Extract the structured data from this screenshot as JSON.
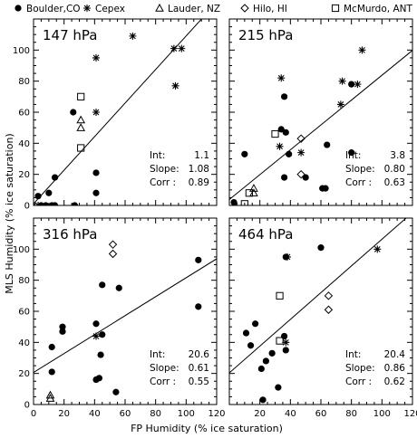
{
  "legend": [
    {
      "label": "Boulder,CO",
      "marker": "filled-circle"
    },
    {
      "label": "Cepex",
      "marker": "asterisk"
    },
    {
      "label": "Lauder, NZ",
      "marker": "triangle"
    },
    {
      "label": "Hilo, HI",
      "marker": "diamond"
    },
    {
      "label": "McMurdo, ANT",
      "marker": "square"
    }
  ],
  "xlabel": "FP Humidity (% ice saturation)",
  "ylabel": "MLS Humidity (% ice saturation)",
  "stat_labels": {
    "int": "Int:",
    "slope": "Slope:",
    "corr": "Corr :"
  },
  "chart_data": [
    {
      "type": "scatter",
      "title": "147 hPa",
      "xlim": [
        0,
        120
      ],
      "ylim": [
        0,
        120
      ],
      "xticks": [],
      "yticks": [
        0,
        20,
        40,
        60,
        80,
        100
      ],
      "stats": {
        "int": "1.1",
        "slope": "1.08",
        "corr": "0.89"
      },
      "fit": {
        "intercept": 1.1,
        "slope": 1.08
      },
      "series": [
        {
          "marker": "filled-circle",
          "points": [
            [
              3,
              6
            ],
            [
              5,
              0
            ],
            [
              8,
              0
            ],
            [
              10,
              8
            ],
            [
              12,
              0
            ],
            [
              14,
              0
            ],
            [
              14,
              18
            ],
            [
              26,
              60
            ],
            [
              27,
              0
            ],
            [
              41,
              21
            ],
            [
              41,
              8
            ]
          ]
        },
        {
          "marker": "asterisk",
          "points": [
            [
              0,
              0
            ],
            [
              3,
              0
            ],
            [
              41,
              95
            ],
            [
              41,
              60
            ],
            [
              65,
              109
            ],
            [
              92,
              101
            ],
            [
              97,
              101
            ],
            [
              93,
              77
            ]
          ]
        },
        {
          "marker": "triangle",
          "points": [
            [
              31,
              55
            ],
            [
              31,
              50
            ]
          ]
        },
        {
          "marker": "square",
          "points": [
            [
              31,
              70
            ],
            [
              31,
              37
            ]
          ]
        }
      ]
    },
    {
      "type": "scatter",
      "title": "215 hPa",
      "xlim": [
        0,
        120
      ],
      "ylim": [
        0,
        120
      ],
      "xticks": [],
      "yticks": [],
      "stats": {
        "int": "3.8",
        "slope": "0.80",
        "corr": "0.63"
      },
      "fit": {
        "intercept": 3.8,
        "slope": 0.8
      },
      "series": [
        {
          "marker": "filled-circle",
          "points": [
            [
              3,
              2
            ],
            [
              10,
              33
            ],
            [
              34,
              49
            ],
            [
              36,
              70
            ],
            [
              37,
              47
            ],
            [
              36,
              18
            ],
            [
              39,
              33
            ],
            [
              50,
              18
            ],
            [
              61,
              11
            ],
            [
              63,
              11
            ],
            [
              64,
              39
            ],
            [
              80,
              78
            ],
            [
              80,
              34
            ]
          ]
        },
        {
          "marker": "asterisk",
          "points": [
            [
              34,
              82
            ],
            [
              33,
              38
            ],
            [
              47,
              34
            ],
            [
              74,
              80
            ],
            [
              73,
              65
            ],
            [
              87,
              100
            ],
            [
              84,
              78
            ]
          ]
        },
        {
          "marker": "triangle",
          "points": [
            [
              16,
              11
            ],
            [
              16,
              8
            ]
          ]
        },
        {
          "marker": "diamond",
          "points": [
            [
              47,
              43
            ],
            [
              47,
              20
            ]
          ]
        },
        {
          "marker": "square",
          "points": [
            [
              10,
              1
            ],
            [
              30,
              46
            ],
            [
              13,
              8
            ]
          ]
        }
      ]
    },
    {
      "type": "scatter",
      "title": "316 hPa",
      "xlim": [
        0,
        120
      ],
      "ylim": [
        0,
        120
      ],
      "xticks": [
        0,
        20,
        40,
        60,
        80,
        100,
        120
      ],
      "yticks": [
        0,
        20,
        40,
        60,
        80,
        100
      ],
      "stats": {
        "int": "20.6",
        "slope": "0.61",
        "corr": "0.55"
      },
      "fit": {
        "intercept": 20.6,
        "slope": 0.61
      },
      "series": [
        {
          "marker": "filled-circle",
          "points": [
            [
              12,
              37
            ],
            [
              12,
              21
            ],
            [
              19,
              47
            ],
            [
              19,
              50
            ],
            [
              41,
              52
            ],
            [
              41,
              16
            ],
            [
              43,
              17
            ],
            [
              45,
              77
            ],
            [
              45,
              45
            ],
            [
              44,
              32
            ],
            [
              56,
              75
            ],
            [
              54,
              8
            ],
            [
              108,
              93
            ],
            [
              108,
              63
            ]
          ]
        },
        {
          "marker": "asterisk",
          "points": [
            [
              41,
              44
            ]
          ]
        },
        {
          "marker": "triangle",
          "points": [
            [
              11,
              6
            ],
            [
              11,
              4
            ]
          ]
        },
        {
          "marker": "diamond",
          "points": [
            [
              52,
              103
            ],
            [
              52,
              97
            ]
          ]
        }
      ]
    },
    {
      "type": "scatter",
      "title": "464 hPa",
      "xlim": [
        0,
        120
      ],
      "ylim": [
        0,
        120
      ],
      "xticks": [
        20,
        40,
        60,
        80,
        100,
        120
      ],
      "yticks": [],
      "stats": {
        "int": "20.4",
        "slope": "0.86",
        "corr": "0.62"
      },
      "fit": {
        "intercept": 20.4,
        "slope": 0.86
      },
      "series": [
        {
          "marker": "filled-circle",
          "points": [
            [
              11,
              46
            ],
            [
              14,
              38
            ],
            [
              17,
              52
            ],
            [
              21,
              23
            ],
            [
              22,
              3
            ],
            [
              24,
              28
            ],
            [
              28,
              33
            ],
            [
              32,
              11
            ],
            [
              36,
              44
            ],
            [
              37,
              35
            ],
            [
              60,
              101
            ],
            [
              37,
              95
            ]
          ]
        },
        {
          "marker": "asterisk",
          "points": [
            [
              38,
              95
            ],
            [
              37,
              40
            ],
            [
              97,
              100
            ]
          ]
        },
        {
          "marker": "diamond",
          "points": [
            [
              65,
              70
            ],
            [
              65,
              61
            ]
          ]
        },
        {
          "marker": "square",
          "points": [
            [
              33,
              70
            ],
            [
              33,
              41
            ]
          ]
        }
      ]
    }
  ]
}
